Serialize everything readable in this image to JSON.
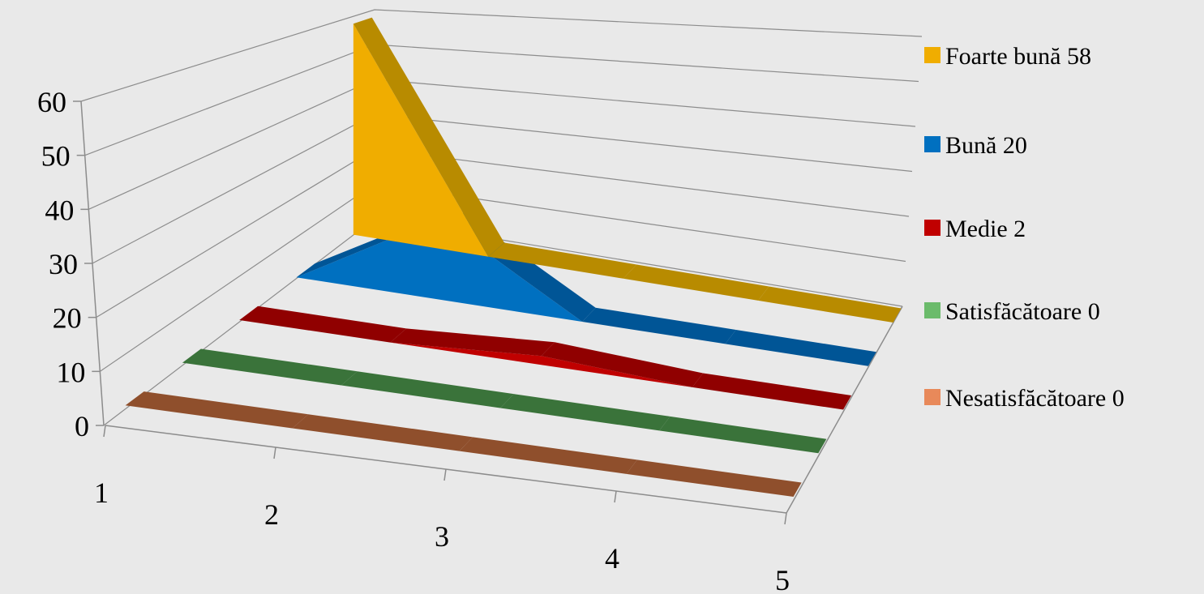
{
  "chart_data": {
    "type": "area",
    "chart_style": "3d-line-ribbons",
    "categories": [
      "1",
      "2",
      "3",
      "4",
      "5"
    ],
    "ylim": [
      0,
      60
    ],
    "y_ticks": [
      "0",
      "10",
      "20",
      "30",
      "40",
      "50",
      "60"
    ],
    "grid": true,
    "legend_position": "right",
    "series": [
      {
        "name": "Foarte bună 58",
        "values": [
          58,
          0,
          0,
          0,
          0
        ],
        "color": "#f0ad00",
        "dark": "#b88b00"
      },
      {
        "name": "Bună 20",
        "values": [
          0,
          20,
          0,
          0,
          0
        ],
        "color": "#0070c0",
        "dark": "#005596"
      },
      {
        "name": "Medie 2",
        "values": [
          0,
          0,
          2,
          0,
          0
        ],
        "color": "#c00000",
        "dark": "#900000"
      },
      {
        "name": "Satisfăcătoare 0",
        "values": [
          0,
          0,
          0,
          0,
          0
        ],
        "color": "#4e8f4e",
        "dark": "#3a733a",
        "legend_color": "#6bbb6b"
      },
      {
        "name": "Nesatisfăcătoare 0",
        "values": [
          0,
          0,
          0,
          0,
          0
        ],
        "color": "#b5683e",
        "dark": "#8f4f2c",
        "legend_color": "#e8895a"
      }
    ]
  }
}
